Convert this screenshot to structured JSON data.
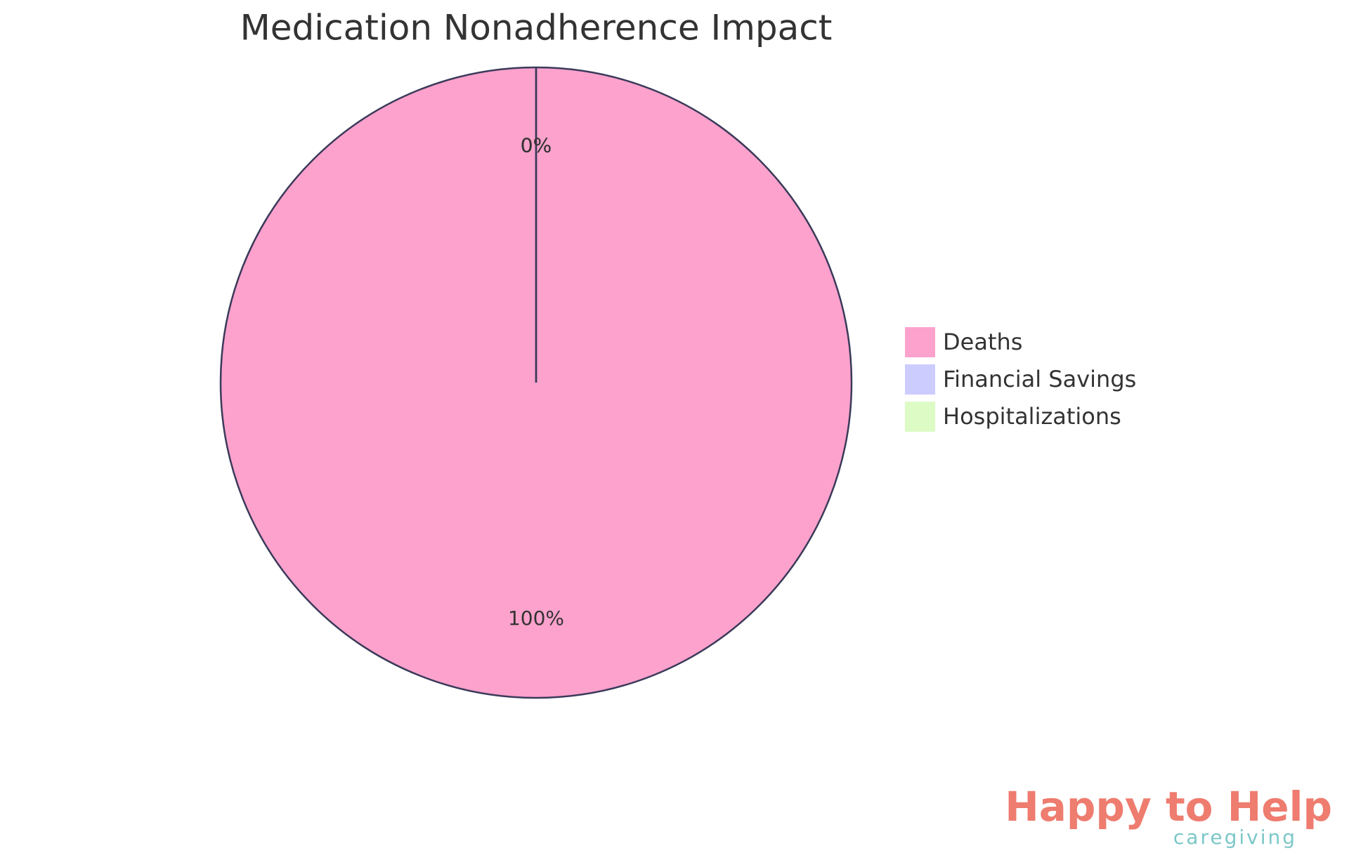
{
  "chart_data": {
    "type": "pie",
    "title": "Medication Nonadherence Impact",
    "categories": [
      "Deaths",
      "Financial Savings",
      "Hospitalizations"
    ],
    "values": [
      100,
      0,
      0
    ],
    "value_labels": [
      "100%",
      "0%",
      "0%"
    ],
    "colors": [
      "#fca2cc",
      "#ccccff",
      "#ddfbc4"
    ],
    "legend": "right"
  },
  "logo": {
    "name": "Happy to Help",
    "tagline": "caregiving"
  }
}
